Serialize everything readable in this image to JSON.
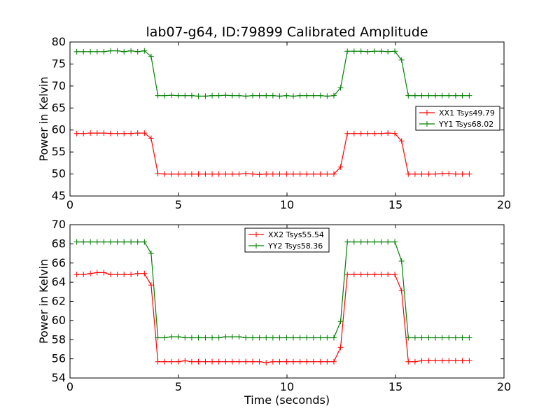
{
  "figure": {
    "title": "lab07-g64, ID:79899 Calibrated Amplitude"
  },
  "chart_data": [
    {
      "type": "line",
      "title": "lab07-g64, ID:79899 Calibrated Amplitude",
      "xlabel": "",
      "ylabel": "Power in Kelvin",
      "xlim": [
        0,
        20
      ],
      "ylim": [
        45,
        80
      ],
      "xticks": [
        0,
        5,
        10,
        15,
        20
      ],
      "yticks": [
        45,
        50,
        55,
        60,
        65,
        70,
        75,
        80
      ],
      "grid": false,
      "legend_position": "center-right",
      "series": [
        {
          "name": "XX1 Tsys49.79",
          "color": "#ff0000",
          "values": [
            59.2,
            59.2,
            59.3,
            59.3,
            59.3,
            59.2,
            59.2,
            59.2,
            59.2,
            59.3,
            59.3,
            58.1,
            50.1,
            50.0,
            50.0,
            50.0,
            50.0,
            50.0,
            50.0,
            50.0,
            50.0,
            50.0,
            50.0,
            50.0,
            50.0,
            50.1,
            50.0,
            49.9,
            50.0,
            50.0,
            50.0,
            50.0,
            50.0,
            50.0,
            50.0,
            50.0,
            50.0,
            50.0,
            50.0,
            51.6,
            59.2,
            59.2,
            59.2,
            59.2,
            59.2,
            59.2,
            59.3,
            59.2,
            57.5,
            50.0,
            50.0,
            50.0,
            50.0,
            50.0,
            50.1,
            50.1,
            50.0,
            50.0,
            50.0
          ]
        },
        {
          "name": "YY1 Tsys68.02",
          "color": "#008000",
          "values": [
            77.8,
            77.8,
            77.8,
            77.8,
            77.8,
            78.0,
            78.0,
            77.8,
            78.0,
            77.8,
            78.0,
            76.7,
            67.8,
            67.8,
            67.9,
            67.8,
            67.8,
            67.8,
            67.7,
            67.7,
            67.8,
            67.8,
            67.9,
            67.8,
            67.8,
            67.7,
            67.8,
            67.8,
            67.8,
            67.8,
            67.7,
            67.8,
            67.7,
            67.8,
            67.8,
            67.8,
            67.8,
            67.7,
            67.8,
            69.6,
            77.9,
            77.9,
            77.9,
            77.8,
            77.9,
            77.9,
            77.8,
            77.9,
            75.9,
            67.8,
            67.8,
            67.8,
            67.8,
            67.8,
            67.8,
            67.8,
            67.8,
            67.8,
            67.8
          ]
        }
      ]
    },
    {
      "type": "line",
      "title": "",
      "xlabel": "Time (seconds)",
      "ylabel": "Power in Kelvin",
      "xlim": [
        0,
        20
      ],
      "ylim": [
        54,
        70
      ],
      "xticks": [
        0,
        5,
        10,
        15,
        20
      ],
      "yticks": [
        54,
        56,
        58,
        60,
        62,
        64,
        66,
        68,
        70
      ],
      "grid": false,
      "legend_position": "top-center",
      "series": [
        {
          "name": "XX2 Tsys55.54",
          "color": "#ff0000",
          "values": [
            64.8,
            64.8,
            64.9,
            65.0,
            65.0,
            64.8,
            64.8,
            64.8,
            64.8,
            64.9,
            64.9,
            63.7,
            55.7,
            55.7,
            55.7,
            55.7,
            55.8,
            55.7,
            55.7,
            55.7,
            55.7,
            55.7,
            55.7,
            55.7,
            55.7,
            55.7,
            55.7,
            55.7,
            55.6,
            55.7,
            55.7,
            55.7,
            55.7,
            55.7,
            55.7,
            55.7,
            55.7,
            55.7,
            55.7,
            57.2,
            64.8,
            64.8,
            64.8,
            64.8,
            64.8,
            64.8,
            64.8,
            64.8,
            63.1,
            55.7,
            55.7,
            55.8,
            55.8,
            55.8,
            55.8,
            55.8,
            55.8,
            55.8,
            55.8
          ]
        },
        {
          "name": "YY2 Tsys58.36",
          "color": "#008000",
          "values": [
            68.2,
            68.2,
            68.2,
            68.2,
            68.2,
            68.2,
            68.2,
            68.2,
            68.2,
            68.2,
            68.2,
            67.0,
            58.2,
            58.2,
            58.3,
            58.3,
            58.2,
            58.2,
            58.2,
            58.2,
            58.2,
            58.2,
            58.3,
            58.3,
            58.3,
            58.2,
            58.2,
            58.2,
            58.2,
            58.2,
            58.2,
            58.2,
            58.2,
            58.2,
            58.2,
            58.2,
            58.2,
            58.2,
            58.2,
            59.9,
            68.2,
            68.2,
            68.2,
            68.2,
            68.2,
            68.2,
            68.2,
            68.2,
            66.2,
            58.2,
            58.2,
            58.2,
            58.2,
            58.2,
            58.2,
            58.2,
            58.2,
            58.2,
            58.2
          ]
        }
      ]
    }
  ],
  "x_values": [
    0.31,
    0.62,
    0.94,
    1.25,
    1.56,
    1.87,
    2.18,
    2.49,
    2.81,
    3.12,
    3.43,
    3.74,
    4.05,
    4.36,
    4.68,
    4.99,
    5.3,
    5.61,
    5.92,
    6.24,
    6.55,
    6.86,
    7.17,
    7.48,
    7.79,
    8.1,
    8.42,
    8.73,
    9.04,
    9.35,
    9.66,
    9.98,
    10.29,
    10.6,
    10.91,
    11.22,
    11.54,
    11.85,
    12.16,
    12.47,
    12.78,
    13.09,
    13.41,
    13.72,
    14.03,
    14.34,
    14.65,
    14.97,
    15.28,
    15.59,
    15.9,
    16.21,
    16.53,
    16.84,
    17.15,
    17.46,
    17.77,
    18.08,
    18.4
  ]
}
